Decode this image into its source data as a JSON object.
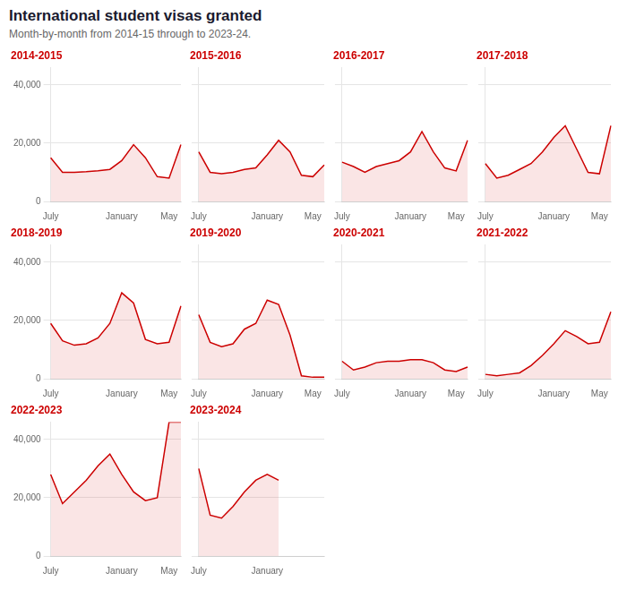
{
  "title": "International student visas granted",
  "subtitle": "Month-by-month from 2014-15 through to 2023-24.",
  "chart_data": [
    {
      "type": "line",
      "title": "2014-2015",
      "categories": [
        "July",
        null,
        null,
        null,
        null,
        null,
        "January",
        null,
        null,
        null,
        "May",
        null
      ],
      "series": [
        {
          "name": "2014-2015",
          "color": "#cc0000",
          "values": [
            15000,
            10000,
            10000,
            10200,
            10500,
            11000,
            14000,
            19500,
            15000,
            8500,
            8000,
            19500
          ]
        }
      ],
      "ylim": [
        0,
        46000
      ],
      "yticks": [
        0,
        {
          "value": 20000,
          "label": "20,000"
        },
        {
          "value": 40000,
          "label": "40,000"
        }
      ],
      "grid": true
    },
    {
      "type": "line",
      "title": "2015-2016",
      "categories": [
        "July",
        null,
        null,
        null,
        null,
        null,
        "January",
        null,
        null,
        null,
        "May",
        null
      ],
      "series": [
        {
          "name": "2015-2016",
          "color": "#cc0000",
          "values": [
            17000,
            10000,
            9500,
            10000,
            11000,
            11500,
            16000,
            21000,
            17000,
            9000,
            8500,
            12500
          ]
        }
      ],
      "ylim": [
        0,
        46000
      ],
      "yticks": [
        0,
        {
          "value": 20000,
          "label": "20,000"
        },
        {
          "value": 40000,
          "label": "40,000"
        }
      ],
      "grid": true,
      "tick_labels": "x"
    },
    {
      "type": "line",
      "title": "2016-2017",
      "categories": [
        "July",
        null,
        null,
        null,
        null,
        null,
        "January",
        null,
        null,
        null,
        "May",
        null
      ],
      "series": [
        {
          "name": "2016-2017",
          "color": "#cc0000",
          "values": [
            13500,
            12000,
            10000,
            12000,
            13000,
            14000,
            17000,
            24000,
            17000,
            11500,
            10500,
            21000
          ]
        }
      ],
      "ylim": [
        0,
        46000
      ],
      "yticks": [
        0,
        {
          "value": 20000,
          "label": "20,000"
        },
        {
          "value": 40000,
          "label": "40,000"
        }
      ],
      "grid": true,
      "tick_labels": "x"
    },
    {
      "type": "line",
      "title": "2017-2018",
      "categories": [
        "July",
        null,
        null,
        null,
        null,
        null,
        "January",
        null,
        null,
        null,
        "May",
        null
      ],
      "series": [
        {
          "name": "2017-2018",
          "color": "#cc0000",
          "values": [
            13000,
            8000,
            9000,
            11000,
            13000,
            17000,
            22000,
            26000,
            18000,
            10000,
            9500,
            26000
          ]
        }
      ],
      "ylim": [
        0,
        46000
      ],
      "yticks": [
        0,
        {
          "value": 20000,
          "label": "20,000"
        },
        {
          "value": 40000,
          "label": "40,000"
        }
      ],
      "grid": true,
      "tick_labels": "x"
    },
    {
      "type": "line",
      "title": "2018-2019",
      "categories": [
        "July",
        null,
        null,
        null,
        null,
        null,
        "January",
        null,
        null,
        null,
        "May",
        null
      ],
      "series": [
        {
          "name": "2018-2019",
          "color": "#cc0000",
          "values": [
            19000,
            13000,
            11500,
            12000,
            14000,
            19000,
            29500,
            26000,
            13500,
            12000,
            12500,
            25000
          ]
        }
      ],
      "ylim": [
        0,
        46000
      ],
      "yticks": [
        0,
        {
          "value": 20000,
          "label": "20,000"
        },
        {
          "value": 40000,
          "label": "40,000"
        }
      ],
      "grid": true
    },
    {
      "type": "line",
      "title": "2019-2020",
      "categories": [
        "July",
        null,
        null,
        null,
        null,
        null,
        "January",
        null,
        null,
        null,
        "May",
        null
      ],
      "series": [
        {
          "name": "2019-2020",
          "color": "#cc0000",
          "values": [
            22000,
            12500,
            11000,
            12000,
            17000,
            19000,
            27000,
            25500,
            15000,
            1000,
            500,
            500
          ]
        }
      ],
      "ylim": [
        0,
        46000
      ],
      "yticks": [
        0,
        {
          "value": 20000,
          "label": "20,000"
        },
        {
          "value": 40000,
          "label": "40,000"
        }
      ],
      "grid": true,
      "tick_labels": "x"
    },
    {
      "type": "line",
      "title": "2020-2021",
      "categories": [
        "July",
        null,
        null,
        null,
        null,
        null,
        "January",
        null,
        null,
        null,
        "May",
        null
      ],
      "series": [
        {
          "name": "2020-2021",
          "color": "#cc0000",
          "values": [
            6000,
            3000,
            4000,
            5500,
            6000,
            6000,
            6500,
            6500,
            5500,
            3000,
            2500,
            4000
          ]
        }
      ],
      "ylim": [
        0,
        46000
      ],
      "yticks": [
        0,
        {
          "value": 20000,
          "label": "20,000"
        },
        {
          "value": 40000,
          "label": "40,000"
        }
      ],
      "grid": true,
      "tick_labels": "x"
    },
    {
      "type": "line",
      "title": "2021-2022",
      "categories": [
        "July",
        null,
        null,
        null,
        null,
        null,
        "January",
        null,
        null,
        null,
        "May",
        null
      ],
      "series": [
        {
          "name": "2021-2022",
          "color": "#cc0000",
          "values": [
            1500,
            1000,
            1500,
            2000,
            4500,
            8000,
            12000,
            16500,
            14500,
            12000,
            12500,
            23000
          ]
        }
      ],
      "ylim": [
        0,
        46000
      ],
      "yticks": [
        0,
        {
          "value": 20000,
          "label": "20,000"
        },
        {
          "value": 40000,
          "label": "40,000"
        }
      ],
      "grid": true,
      "tick_labels": "x"
    },
    {
      "type": "line",
      "title": "2022-2023",
      "categories": [
        "July",
        null,
        null,
        null,
        null,
        null,
        "January",
        null,
        null,
        null,
        "May",
        null
      ],
      "series": [
        {
          "name": "2022-2023",
          "color": "#cc0000",
          "values": [
            28000,
            18000,
            22000,
            26000,
            31000,
            35000,
            28000,
            22000,
            19000,
            20000,
            46000,
            46000
          ]
        }
      ],
      "ylim": [
        0,
        46000
      ],
      "yticks": [
        0,
        {
          "value": 20000,
          "label": "20,000"
        },
        {
          "value": 40000,
          "label": "40,000"
        }
      ],
      "grid": true
    },
    {
      "type": "line",
      "title": "2023-2024",
      "categories": [
        "July",
        null,
        null,
        null,
        null,
        null,
        "January",
        null,
        null,
        null,
        null,
        null
      ],
      "series": [
        {
          "name": "2023-2024",
          "color": "#cc0000",
          "values": [
            30000,
            14000,
            13000,
            17000,
            22000,
            26000,
            28000,
            26000,
            null,
            null,
            null,
            null
          ]
        }
      ],
      "ylim": [
        0,
        46000
      ],
      "yticks": [
        0,
        {
          "value": 20000,
          "label": "20,000"
        },
        {
          "value": 40000,
          "label": "40,000"
        }
      ],
      "grid": true,
      "tick_labels": "x"
    }
  ]
}
